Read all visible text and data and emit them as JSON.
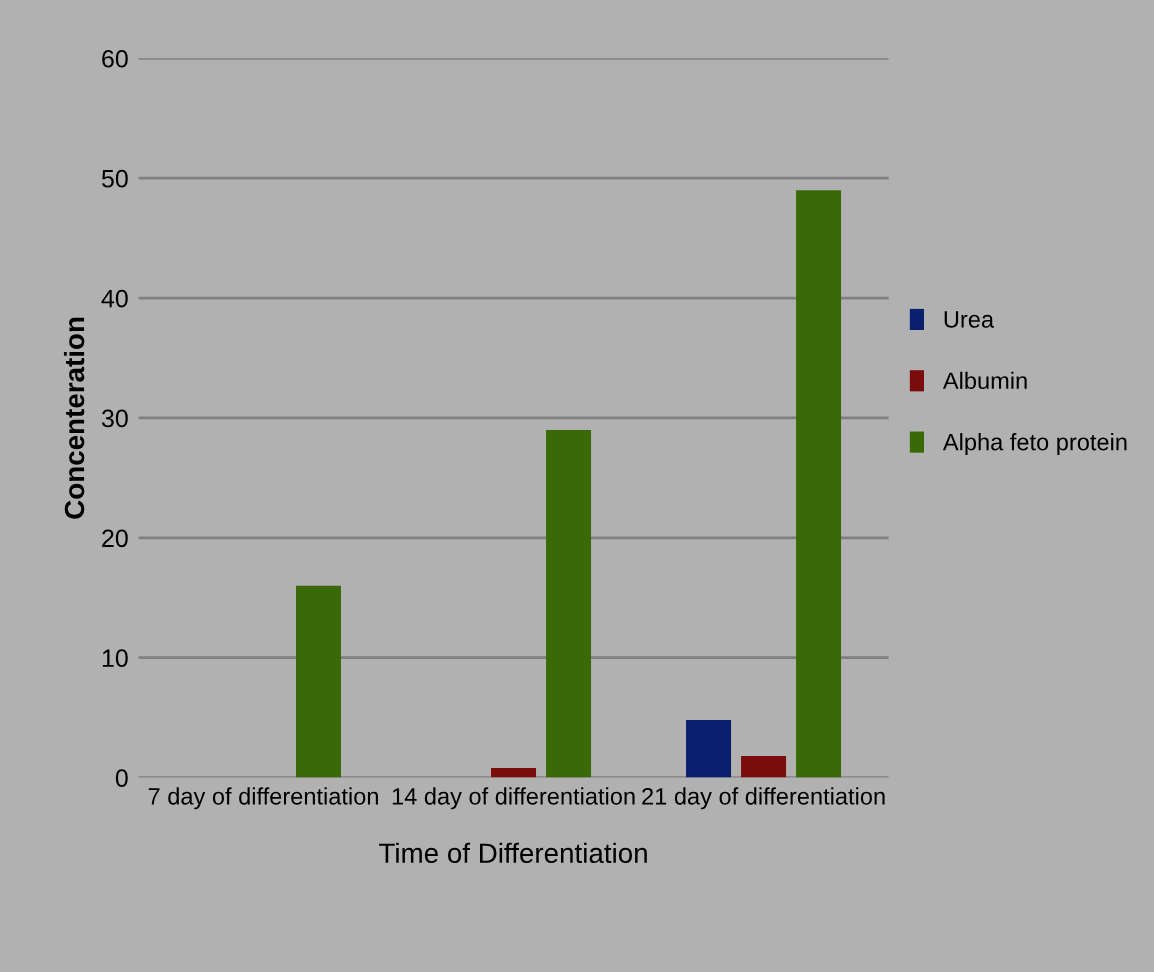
{
  "chart_data": {
    "type": "bar",
    "xlabel": "Time of Differentiation",
    "ylabel": "Concenteration",
    "categories": [
      "7 day of differentiation",
      "14 day of differentiation",
      "21 day of differentiation"
    ],
    "series": [
      {
        "name": "Urea",
        "color": "#0a1f6e",
        "values": [
          0,
          0,
          4.8
        ]
      },
      {
        "name": "Albumin",
        "color": "#7a0c0c",
        "values": [
          0,
          0.8,
          1.8
        ]
      },
      {
        "name": "Alpha feto protein",
        "color": "#3a6a08",
        "values": [
          16,
          29,
          49
        ]
      }
    ],
    "ylim": [
      0,
      60
    ],
    "yticks": [
      0,
      10,
      20,
      30,
      40,
      50,
      60
    ],
    "grid": "y",
    "legend": "right"
  }
}
